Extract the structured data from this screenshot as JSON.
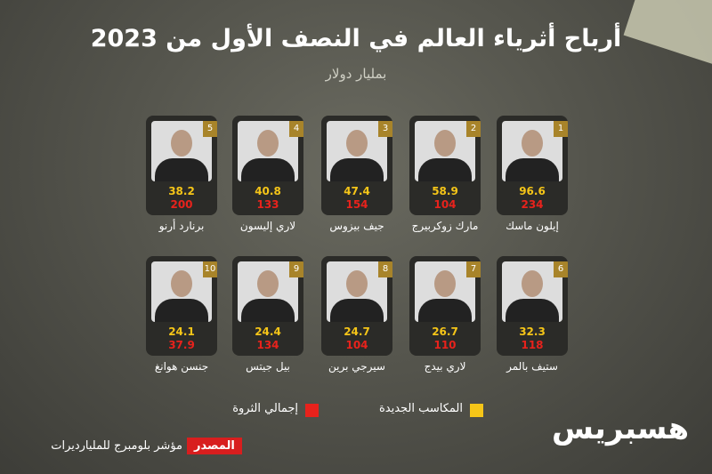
{
  "header": {
    "title": "أرباح أثرياء العالم في النصف الأول من 2023",
    "subtitle": "بمليار دولار"
  },
  "people": [
    {
      "rank": 1,
      "name": "إيلون ماسك",
      "gain": 96.6,
      "total": 234
    },
    {
      "rank": 2,
      "name": "مارك زوكربيرج",
      "gain": 58.9,
      "total": 104
    },
    {
      "rank": 3,
      "name": "جيف بيزوس",
      "gain": 47.4,
      "total": 154
    },
    {
      "rank": 4,
      "name": "لاري إليسون",
      "gain": 40.8,
      "total": 133
    },
    {
      "rank": 5,
      "name": "برنارد أرنو",
      "gain": 38.2,
      "total": 200
    },
    {
      "rank": 6,
      "name": "ستيف بالمر",
      "gain": 32.3,
      "total": 118
    },
    {
      "rank": 7,
      "name": "لاري بيدج",
      "gain": 26.7,
      "total": 110
    },
    {
      "rank": 8,
      "name": "سيرجي برين",
      "gain": 24.7,
      "total": 104
    },
    {
      "rank": 9,
      "name": "بيل جيتس",
      "gain": 24.4,
      "total": 134
    },
    {
      "rank": 10,
      "name": "جنسن هوانغ",
      "gain": 24.1,
      "total": 37.9
    }
  ],
  "legend": [
    "المكاسب الجديدة",
    "إجمالي الثروة"
  ],
  "footer": {
    "logo": "هسبريس",
    "source_label": "المصدر",
    "source": "مؤشر بلومبرج للمليارديرات"
  }
}
